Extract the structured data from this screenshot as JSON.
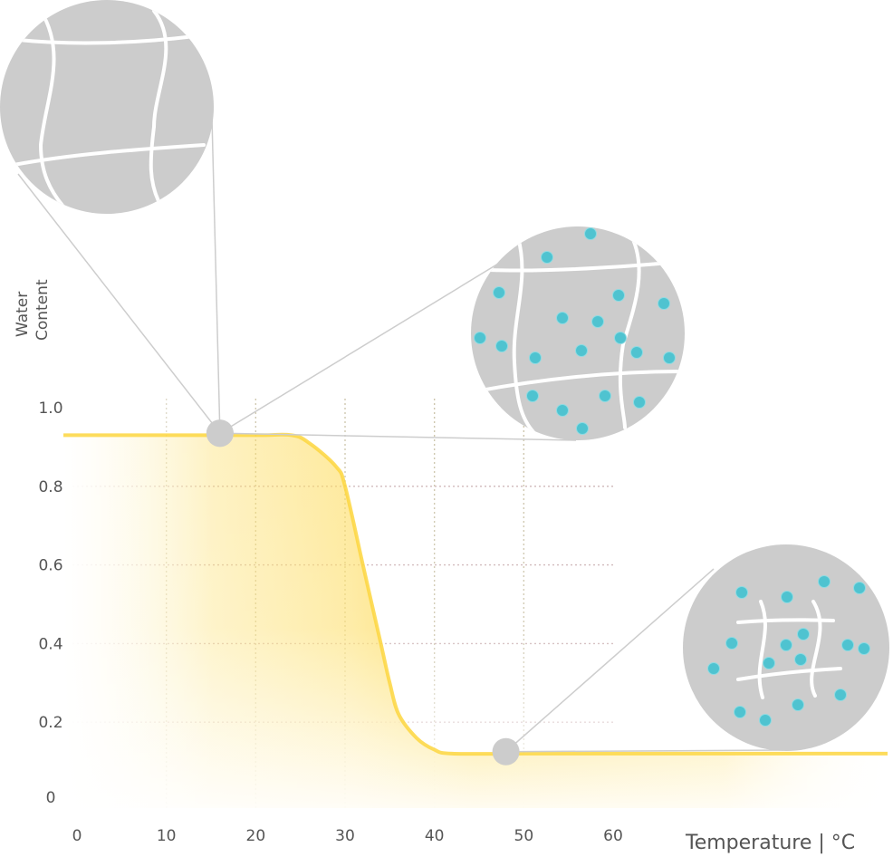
{
  "chart_data": {
    "type": "area",
    "title": "",
    "xlabel": "Temperature | °C",
    "ylabel": "Water Content",
    "ylabel_lines": [
      "Water",
      "Content"
    ],
    "x_ticks": [
      0,
      10,
      20,
      30,
      40,
      50,
      60
    ],
    "y_ticks": [
      0,
      0.2,
      0.4,
      0.6,
      0.8,
      1.0
    ],
    "y_tick_labels": [
      "0",
      "0.2",
      "0.4",
      "0.6",
      "0.8",
      "1.0"
    ],
    "xlim": [
      0,
      60
    ],
    "ylim": [
      0,
      1.0
    ],
    "grid": true,
    "series": [
      {
        "name": "water content",
        "x": [
          0,
          10,
          20,
          24,
          26,
          29,
          30,
          32,
          34,
          35,
          36,
          38,
          40,
          42,
          50,
          60
        ],
        "y": [
          0.93,
          0.93,
          0.93,
          0.93,
          0.91,
          0.85,
          0.8,
          0.6,
          0.4,
          0.3,
          0.22,
          0.16,
          0.13,
          0.12,
          0.12,
          0.12
        ]
      }
    ],
    "callouts": [
      {
        "name": "swollen-state",
        "x": 16,
        "y": 0.935,
        "particles": 0
      },
      {
        "name": "transition-state",
        "x": 16,
        "y": 0.935,
        "particles": 24
      },
      {
        "name": "collapsed-state",
        "x": 48,
        "y": 0.125,
        "particles": 22
      }
    ],
    "colors": {
      "curve": "#fdd640",
      "grid_v": "#c9c1a6",
      "grid_h": "#c9aeb0",
      "circle": "#cccccc",
      "fiber": "#ffffff",
      "particle": "#4fc3d0",
      "leader": "#cdcdcd",
      "text": "#555555"
    }
  }
}
